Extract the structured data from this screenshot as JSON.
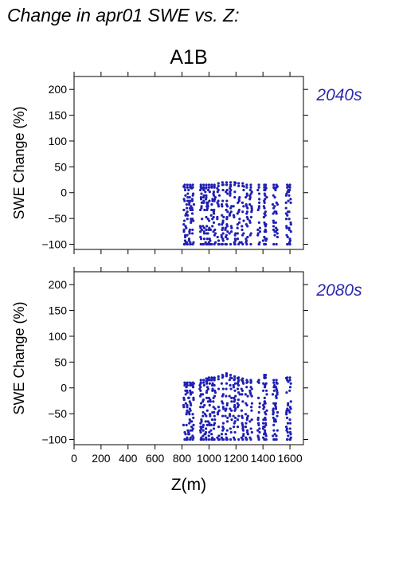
{
  "header": {
    "title": "Change in apr01 SWE vs. Z:",
    "scenario": "A1B"
  },
  "colors": {
    "points": "#1f1fb4",
    "period_label": "#2a2ab0",
    "axis": "#000000"
  },
  "chart_data": [
    {
      "type": "scatter",
      "period_label": "2040s",
      "xlabel": "Z(m)",
      "ylabel": "SWE Change (%)",
      "xlim": [
        0,
        1700
      ],
      "ylim": [
        -110,
        225
      ],
      "xticks": [
        0,
        200,
        400,
        600,
        800,
        1000,
        1200,
        1400,
        1600
      ],
      "yticks": [
        -100,
        -50,
        0,
        50,
        100,
        150,
        200
      ],
      "x_tick_labels": [],
      "y_tick_labels": [
        "−100",
        "−50",
        "0",
        "50",
        "100",
        "150",
        "200"
      ],
      "grid": false,
      "columns": [
        {
          "x": 820,
          "y_min": -100,
          "y_max": 15
        },
        {
          "x": 840,
          "y_min": -100,
          "y_max": 15
        },
        {
          "x": 860,
          "y_min": -100,
          "y_max": 15
        },
        {
          "x": 880,
          "y_min": -100,
          "y_max": 15
        },
        {
          "x": 940,
          "y_min": -100,
          "y_max": 15
        },
        {
          "x": 960,
          "y_min": -100,
          "y_max": 15
        },
        {
          "x": 980,
          "y_min": -100,
          "y_max": 15
        },
        {
          "x": 1000,
          "y_min": -100,
          "y_max": 15
        },
        {
          "x": 1020,
          "y_min": -100,
          "y_max": 15
        },
        {
          "x": 1040,
          "y_min": -100,
          "y_max": 15
        },
        {
          "x": 1070,
          "y_min": -100,
          "y_max": 18
        },
        {
          "x": 1100,
          "y_min": -100,
          "y_max": 20
        },
        {
          "x": 1130,
          "y_min": -100,
          "y_max": 20
        },
        {
          "x": 1160,
          "y_min": -100,
          "y_max": 20
        },
        {
          "x": 1190,
          "y_min": -100,
          "y_max": 20
        },
        {
          "x": 1220,
          "y_min": -100,
          "y_max": 18
        },
        {
          "x": 1250,
          "y_min": -100,
          "y_max": 18
        },
        {
          "x": 1280,
          "y_min": -100,
          "y_max": 15
        },
        {
          "x": 1310,
          "y_min": -100,
          "y_max": 15
        },
        {
          "x": 1370,
          "y_min": -100,
          "y_max": 15
        },
        {
          "x": 1410,
          "y_min": -100,
          "y_max": 15
        },
        {
          "x": 1420,
          "y_min": -100,
          "y_max": 15
        },
        {
          "x": 1480,
          "y_min": -100,
          "y_max": 15
        },
        {
          "x": 1500,
          "y_min": -100,
          "y_max": 15
        },
        {
          "x": 1580,
          "y_min": -100,
          "y_max": 15
        },
        {
          "x": 1600,
          "y_min": -100,
          "y_max": 15
        }
      ]
    },
    {
      "type": "scatter",
      "period_label": "2080s",
      "xlabel": "Z(m)",
      "ylabel": "SWE Change (%)",
      "xlim": [
        0,
        1700
      ],
      "ylim": [
        -110,
        225
      ],
      "xticks": [
        0,
        200,
        400,
        600,
        800,
        1000,
        1200,
        1400,
        1600
      ],
      "yticks": [
        -100,
        -50,
        0,
        50,
        100,
        150,
        200
      ],
      "x_tick_labels": [
        "0",
        "200",
        "400",
        "600",
        "800",
        "1000",
        "1200",
        "1400",
        "1600"
      ],
      "y_tick_labels": [
        "−100",
        "−50",
        "0",
        "50",
        "100",
        "150",
        "200"
      ],
      "grid": false,
      "columns": [
        {
          "x": 820,
          "y_min": -100,
          "y_max": 10
        },
        {
          "x": 840,
          "y_min": -100,
          "y_max": 10
        },
        {
          "x": 860,
          "y_min": -100,
          "y_max": 10
        },
        {
          "x": 880,
          "y_min": -100,
          "y_max": 10
        },
        {
          "x": 940,
          "y_min": -100,
          "y_max": 15
        },
        {
          "x": 960,
          "y_min": -100,
          "y_max": 15
        },
        {
          "x": 980,
          "y_min": -100,
          "y_max": 18
        },
        {
          "x": 1000,
          "y_min": -100,
          "y_max": 20
        },
        {
          "x": 1020,
          "y_min": -100,
          "y_max": 20
        },
        {
          "x": 1040,
          "y_min": -100,
          "y_max": 20
        },
        {
          "x": 1070,
          "y_min": -100,
          "y_max": 22
        },
        {
          "x": 1100,
          "y_min": -100,
          "y_max": 25
        },
        {
          "x": 1130,
          "y_min": -100,
          "y_max": 28
        },
        {
          "x": 1160,
          "y_min": -100,
          "y_max": 25
        },
        {
          "x": 1190,
          "y_min": -100,
          "y_max": 22
        },
        {
          "x": 1220,
          "y_min": -100,
          "y_max": 20
        },
        {
          "x": 1250,
          "y_min": -100,
          "y_max": 18
        },
        {
          "x": 1280,
          "y_min": -100,
          "y_max": 15
        },
        {
          "x": 1310,
          "y_min": -100,
          "y_max": 15
        },
        {
          "x": 1370,
          "y_min": -100,
          "y_max": 15
        },
        {
          "x": 1410,
          "y_min": -100,
          "y_max": 25
        },
        {
          "x": 1420,
          "y_min": -100,
          "y_max": 25
        },
        {
          "x": 1480,
          "y_min": -100,
          "y_max": 15
        },
        {
          "x": 1500,
          "y_min": -100,
          "y_max": 15
        },
        {
          "x": 1580,
          "y_min": -100,
          "y_max": 20
        },
        {
          "x": 1600,
          "y_min": -100,
          "y_max": 20
        }
      ]
    }
  ]
}
